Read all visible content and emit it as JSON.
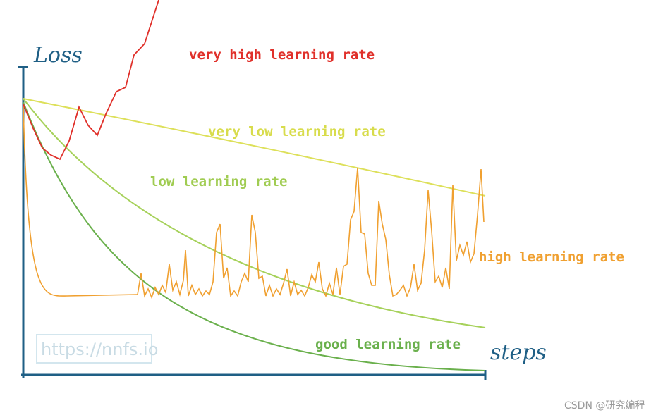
{
  "axes": {
    "y_label": "Loss",
    "x_label": "steps"
  },
  "curves": [
    {
      "label": "very high learning rate"
    },
    {
      "label": "very low learning rate"
    },
    {
      "label": "low learning rate"
    },
    {
      "label": "high learning rate"
    },
    {
      "label": "good learning rate"
    }
  ],
  "watermark": "https://nnfs.io",
  "credit": "CSDN @研究编程"
}
